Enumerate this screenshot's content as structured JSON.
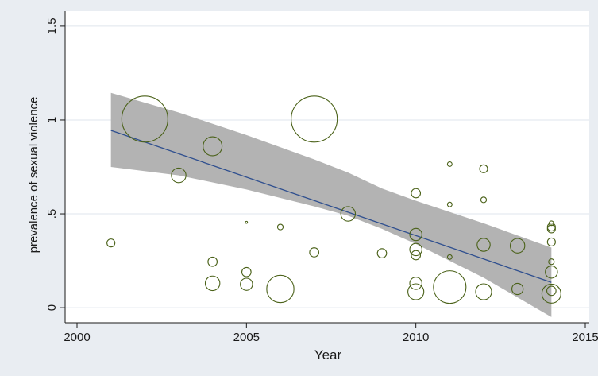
{
  "chart_data": {
    "type": "scatter",
    "title": "",
    "xlabel": "Year",
    "ylabel": "prevalence of sexual violence",
    "xlim": [
      2000,
      2015
    ],
    "ylim": [
      -0.08,
      1.58
    ],
    "x_ticks": [
      2000,
      2005,
      2010,
      2015
    ],
    "x_tick_labels": [
      "2000",
      "2005",
      "2010",
      "2015"
    ],
    "y_ticks": [
      0,
      0.5,
      1,
      1.5
    ],
    "y_tick_labels": [
      "0",
      ".5",
      "1",
      "1.5"
    ],
    "grid": true,
    "legend": "none",
    "marker": "hollow circle, size proportional to weight",
    "colors": {
      "marker": "#4a6118",
      "fit_line": "#2f4f8f",
      "ci_band": "#b3b3b3",
      "plot_background": "#ffffff",
      "outer_background": "#e9edf2",
      "grid": "#dfe5ec"
    },
    "points": [
      {
        "x": 2001,
        "y": 0.345,
        "w": 0.03
      },
      {
        "x": 2002,
        "y": 1.005,
        "w": 1.0
      },
      {
        "x": 2003,
        "y": 0.705,
        "w": 0.1
      },
      {
        "x": 2004,
        "y": 0.86,
        "w": 0.17
      },
      {
        "x": 2004,
        "y": 0.245,
        "w": 0.04
      },
      {
        "x": 2004,
        "y": 0.13,
        "w": 0.1
      },
      {
        "x": 2005,
        "y": 0.455,
        "w": 0.002
      },
      {
        "x": 2005,
        "y": 0.19,
        "w": 0.04
      },
      {
        "x": 2005,
        "y": 0.125,
        "w": 0.07
      },
      {
        "x": 2006,
        "y": 0.43,
        "w": 0.015
      },
      {
        "x": 2006,
        "y": 0.1,
        "w": 0.35
      },
      {
        "x": 2007,
        "y": 1.005,
        "w": 1.0
      },
      {
        "x": 2007,
        "y": 0.295,
        "w": 0.04
      },
      {
        "x": 2008,
        "y": 0.5,
        "w": 0.1
      },
      {
        "x": 2009,
        "y": 0.29,
        "w": 0.04
      },
      {
        "x": 2010,
        "y": 0.61,
        "w": 0.04
      },
      {
        "x": 2010,
        "y": 0.39,
        "w": 0.07
      },
      {
        "x": 2010,
        "y": 0.31,
        "w": 0.07
      },
      {
        "x": 2010,
        "y": 0.28,
        "w": 0.04
      },
      {
        "x": 2010,
        "y": 0.13,
        "w": 0.07
      },
      {
        "x": 2010,
        "y": 0.085,
        "w": 0.12
      },
      {
        "x": 2011,
        "y": 0.765,
        "w": 0.01
      },
      {
        "x": 2011,
        "y": 0.55,
        "w": 0.01
      },
      {
        "x": 2011,
        "y": 0.27,
        "w": 0.01
      },
      {
        "x": 2011,
        "y": 0.11,
        "w": 0.5
      },
      {
        "x": 2012,
        "y": 0.74,
        "w": 0.03
      },
      {
        "x": 2012,
        "y": 0.575,
        "w": 0.015
      },
      {
        "x": 2012,
        "y": 0.335,
        "w": 0.08
      },
      {
        "x": 2012,
        "y": 0.085,
        "w": 0.12
      },
      {
        "x": 2013,
        "y": 0.33,
        "w": 0.1
      },
      {
        "x": 2013,
        "y": 0.1,
        "w": 0.06
      },
      {
        "x": 2014,
        "y": 0.45,
        "w": 0.01
      },
      {
        "x": 2014,
        "y": 0.43,
        "w": 0.03
      },
      {
        "x": 2014,
        "y": 0.42,
        "w": 0.03
      },
      {
        "x": 2014,
        "y": 0.35,
        "w": 0.03
      },
      {
        "x": 2014,
        "y": 0.245,
        "w": 0.015
      },
      {
        "x": 2014,
        "y": 0.19,
        "w": 0.07
      },
      {
        "x": 2014,
        "y": 0.09,
        "w": 0.04
      },
      {
        "x": 2014,
        "y": 0.075,
        "w": 0.17
      }
    ],
    "fit_line": {
      "x": [
        2001,
        2014
      ],
      "y": [
        0.945,
        0.135
      ]
    },
    "ci_band": {
      "x": [
        2001,
        2003,
        2005,
        2007,
        2008,
        2009,
        2010,
        2012,
        2014
      ],
      "lower": [
        0.75,
        0.705,
        0.63,
        0.54,
        0.49,
        0.42,
        0.34,
        0.16,
        -0.05
      ],
      "upper": [
        1.145,
        1.04,
        0.92,
        0.79,
        0.72,
        0.635,
        0.57,
        0.45,
        0.32
      ]
    }
  }
}
